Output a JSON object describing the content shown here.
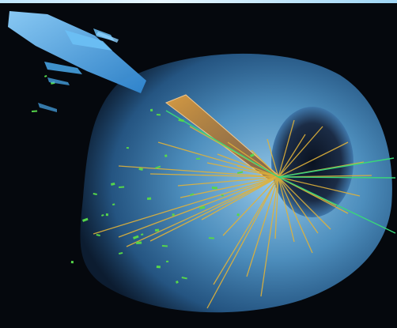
{
  "scene": {
    "background_color": "#05080d",
    "detector_shell_color": "#5aa6dc",
    "detector_inner_color": "#1b2c46",
    "hadron_track_color": "#e0b23a",
    "muon_track_color": "#39d67a",
    "hit_color": "#56d64a",
    "calorimeter_block_color": "#4aa9ec",
    "energy_cone_color": "#c8781e"
  }
}
